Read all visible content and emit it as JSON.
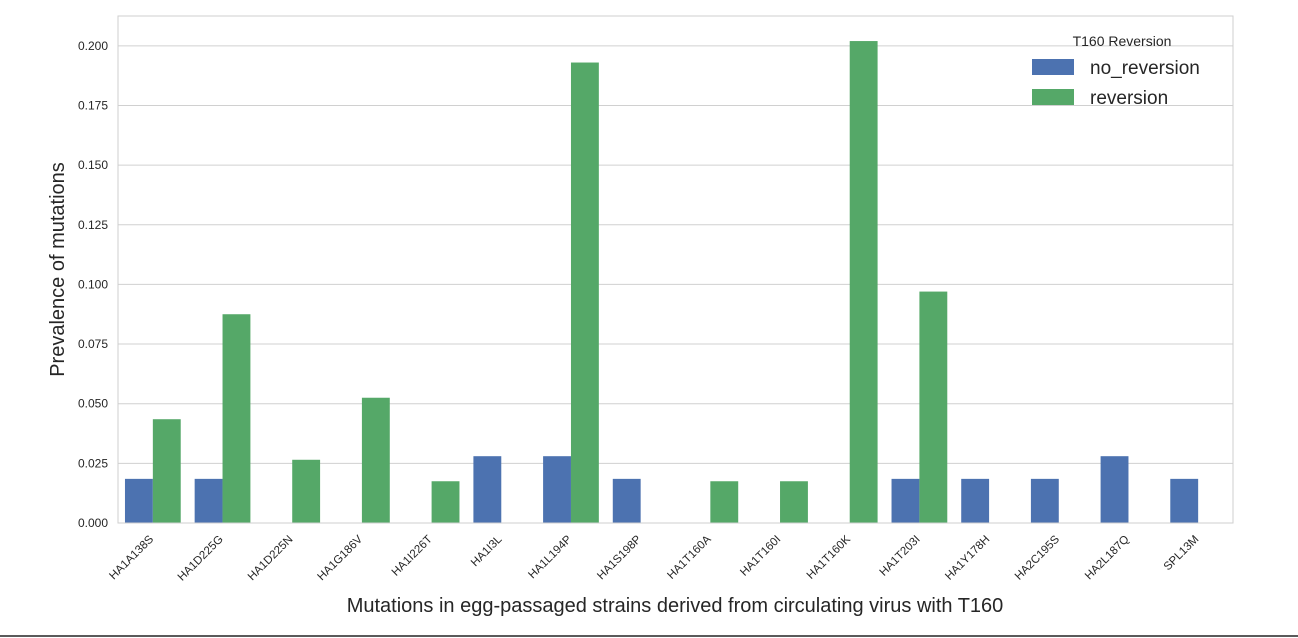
{
  "chart_data": {
    "type": "bar",
    "title": "",
    "xlabel": "Mutations in egg-passaged strains derived from circulating virus with T160",
    "ylabel": "Prevalence of mutations",
    "ylim": [
      0,
      0.2125
    ],
    "yticks": [
      "0.000",
      "0.025",
      "0.050",
      "0.075",
      "0.100",
      "0.125",
      "0.150",
      "0.175",
      "0.200"
    ],
    "grid": true,
    "legend": {
      "title": "T160 Reversion",
      "placement": "top-right"
    },
    "categories": [
      "HA1A138S",
      "HA1D225G",
      "HA1D225N",
      "HA1G186V",
      "HA1I226T",
      "HA1I3L",
      "HA1L194P",
      "HA1S198P",
      "HA1T160A",
      "HA1T160I",
      "HA1T160K",
      "HA1T203I",
      "HA1Y178H",
      "HA2C195S",
      "HA2L187Q",
      "SPL13M"
    ],
    "series": [
      {
        "name": "no_reversion",
        "color": "#4c72b0",
        "values": [
          0.0185,
          0.0185,
          0,
          0,
          0,
          0.028,
          0.028,
          0.0185,
          0,
          0,
          0,
          0.0185,
          0.0185,
          0.0185,
          0.028,
          0.0185
        ]
      },
      {
        "name": "reversion",
        "color": "#55a868",
        "values": [
          0.0435,
          0.0875,
          0.0265,
          0.0525,
          0.0175,
          0,
          0.193,
          0,
          0.0175,
          0.0175,
          0.202,
          0.097,
          0,
          0,
          0,
          0
        ]
      }
    ]
  }
}
